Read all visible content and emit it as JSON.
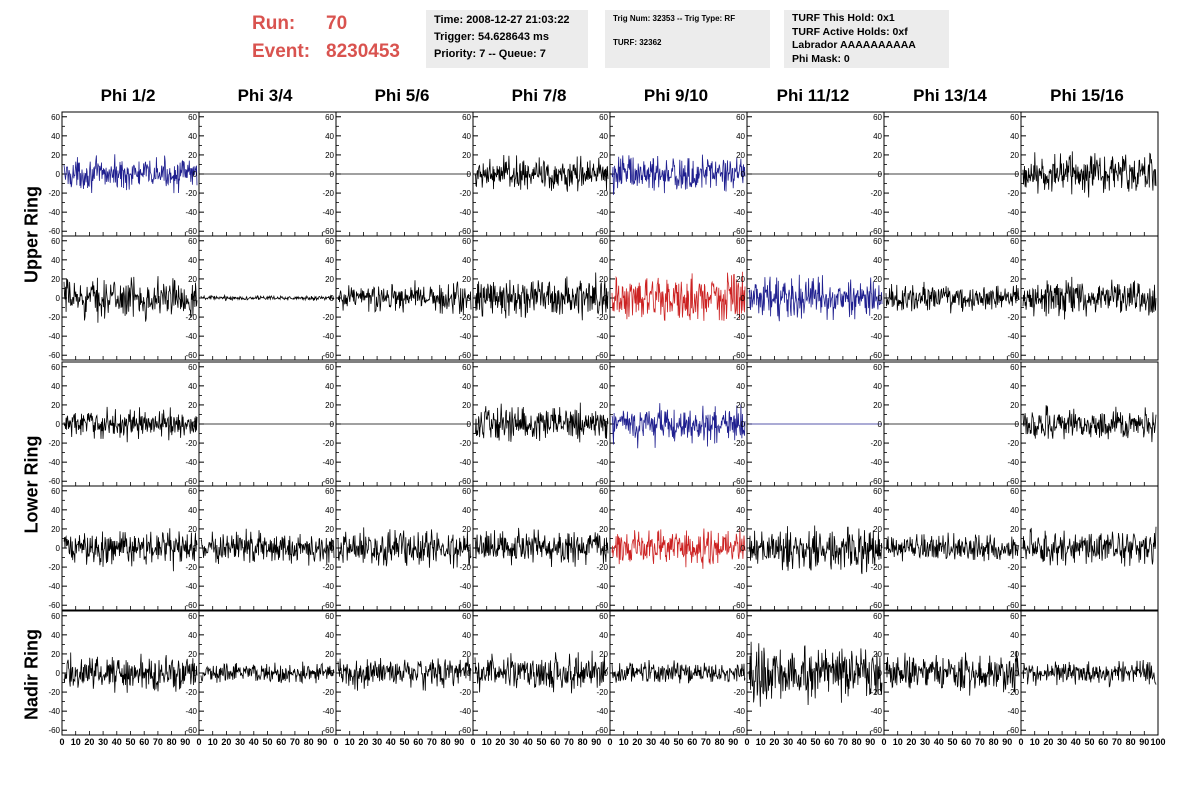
{
  "header": {
    "run_label": "Run:",
    "run_value": "70",
    "event_label": "Event:",
    "event_value": "8230453",
    "box1": [
      "Time: 2008-12-27 21:03:22",
      "Trigger: 54.628643 ms",
      "Priority: 7 -- Queue: 7"
    ],
    "box2": [
      "Trig Num: 32353 -- Trig Type: RF",
      "",
      "TURF: 32362"
    ],
    "box3": [
      "TURF This Hold: 0x1",
      "TURF Active Holds: 0xf",
      "Labrador AAAAAAAAAA",
      "Phi Mask: 0"
    ]
  },
  "colors": {
    "black": "#000000",
    "blue": "#1f1f8f",
    "red": "#cc2222",
    "run_text": "#d9534f",
    "box_bg": "#ececec"
  },
  "chart_data": {
    "type": "line",
    "column_titles": [
      "Phi 1/2",
      "Phi 3/4",
      "Phi 5/6",
      "Phi 7/8",
      "Phi 9/10",
      "Phi 11/12",
      "Phi 13/14",
      "Phi 15/16"
    ],
    "row_titles": [
      "Upper Ring",
      "Lower Ring",
      "Nadir Ring"
    ],
    "ylim": [
      -65,
      65
    ],
    "xlim": [
      0,
      100
    ],
    "y_ticks": [
      "-60",
      "-40",
      "-20",
      "0",
      "20",
      "40",
      "60"
    ],
    "x_tick_labels": [
      "0",
      "10",
      "20",
      "30",
      "40",
      "50",
      "60",
      "70",
      "80",
      "90",
      "100"
    ],
    "waveforms": [
      [
        {
          "color": "blue",
          "amp": 14
        },
        {
          "color": "black",
          "amp": 0
        },
        {
          "color": "black",
          "amp": 0
        },
        {
          "color": "black",
          "amp": 16
        },
        {
          "color": "blue",
          "amp": 17
        },
        {
          "color": "black",
          "amp": 0
        },
        {
          "color": "black",
          "amp": 0
        },
        {
          "color": "black",
          "amp": 18
        }
      ],
      [
        {
          "color": "black",
          "amp": 18
        },
        {
          "color": "black",
          "amp": 2
        },
        {
          "color": "black",
          "amp": 14
        },
        {
          "color": "black",
          "amp": 18
        },
        {
          "color": "red",
          "amp": 22
        },
        {
          "color": "blue",
          "amp": 18
        },
        {
          "color": "black",
          "amp": 12
        },
        {
          "color": "black",
          "amp": 16
        }
      ],
      [
        {
          "color": "black",
          "amp": 13
        },
        {
          "color": "black",
          "amp": 0
        },
        {
          "color": "black",
          "amp": 0
        },
        {
          "color": "black",
          "amp": 16
        },
        {
          "color": "blue",
          "amp": 17
        },
        {
          "color": "blue",
          "amp": 0
        },
        {
          "color": "black",
          "amp": 0
        },
        {
          "color": "black",
          "amp": 14
        }
      ],
      [
        {
          "color": "black",
          "amp": 16
        },
        {
          "color": "black",
          "amp": 15
        },
        {
          "color": "black",
          "amp": 16
        },
        {
          "color": "black",
          "amp": 16
        },
        {
          "color": "red",
          "amp": 17
        },
        {
          "color": "black",
          "amp": 20
        },
        {
          "color": "black",
          "amp": 12
        },
        {
          "color": "black",
          "amp": 16
        }
      ],
      [
        {
          "color": "black",
          "amp": 16
        },
        {
          "color": "black",
          "amp": 9
        },
        {
          "color": "black",
          "amp": 14
        },
        {
          "color": "black",
          "amp": 17
        },
        {
          "color": "black",
          "amp": 10
        },
        {
          "color": "black",
          "amp": 27
        },
        {
          "color": "black",
          "amp": 17
        },
        {
          "color": "black",
          "amp": 11
        }
      ]
    ]
  }
}
